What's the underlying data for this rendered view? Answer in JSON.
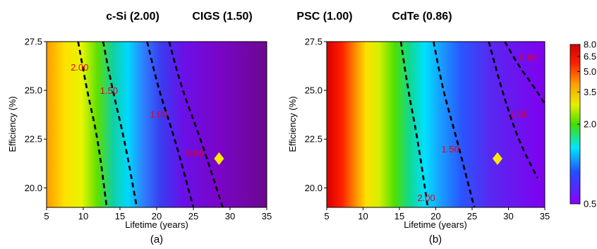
{
  "header_labels": [
    "c-Si (2.00)",
    "CIGS (1.50)",
    "PSC (1.00)",
    "CdTe (0.86)"
  ],
  "chart_data": [
    {
      "type": "heatmap",
      "panel_label": "(a)",
      "xlabel": "Lifetime (years)",
      "ylabel": "Efficiency (%)",
      "xlim": [
        5,
        35
      ],
      "ylim": [
        19,
        27.5
      ],
      "xticks": [
        "5",
        "10",
        "15",
        "20",
        "25",
        "30",
        "35"
      ],
      "yticks": [
        "20.0",
        "22.5",
        "25.0",
        "27.5"
      ],
      "contours": [
        {
          "level": "2.00",
          "points": [
            [
              9.3,
              27.5
            ],
            [
              10.5,
              25.0
            ],
            [
              12.0,
              22.5
            ],
            [
              13.2,
              19.0
            ]
          ]
        },
        {
          "level": "1.50",
          "points": [
            [
              12.7,
              27.5
            ],
            [
              14.0,
              25.0
            ],
            [
              15.6,
              22.5
            ],
            [
              17.3,
              19.0
            ]
          ]
        },
        {
          "level": "1.00",
          "points": [
            [
              18.7,
              27.5
            ],
            [
              20.3,
              25.0
            ],
            [
              22.5,
              22.5
            ],
            [
              25.0,
              19.0
            ]
          ]
        },
        {
          "level": "0.86",
          "points": [
            [
              21.7,
              27.5
            ],
            [
              23.5,
              25.0
            ],
            [
              26.0,
              22.5
            ],
            [
              29.0,
              19.0
            ]
          ]
        }
      ],
      "contour_labels": [
        {
          "text": "2.00",
          "x": 9.5,
          "y": 26.2
        },
        {
          "text": "1.50",
          "x": 13.5,
          "y": 25.0
        },
        {
          "text": "1.00",
          "x": 20.3,
          "y": 23.8
        },
        {
          "text": "0.86",
          "x": 25.2,
          "y": 21.8
        }
      ],
      "marker": {
        "x": 28.5,
        "y": 21.5,
        "shape": "diamond",
        "color": "#ffe800"
      }
    },
    {
      "type": "heatmap",
      "panel_label": "(b)",
      "xlabel": "Lifetime (years)",
      "ylabel": "Efficiency (%)",
      "xlim": [
        5,
        35
      ],
      "ylim": [
        19,
        27.5
      ],
      "xticks": [
        "5",
        "10",
        "15",
        "20",
        "25",
        "30",
        "35"
      ],
      "yticks": [
        "20.0",
        "22.5",
        "25.0",
        "27.5"
      ],
      "contours": [
        {
          "level": "2.00",
          "points": [
            [
              15.2,
              27.5
            ],
            [
              16.2,
              25.0
            ],
            [
              17.5,
              22.5
            ],
            [
              18.9,
              19.0
            ]
          ]
        },
        {
          "level": "1.50",
          "points": [
            [
              19.7,
              27.5
            ],
            [
              21.0,
              25.0
            ],
            [
              22.9,
              22.5
            ],
            [
              25.3,
              19.0
            ]
          ]
        },
        {
          "level": "1.00",
          "points": [
            [
              27.3,
              27.5
            ],
            [
              29.1,
              25.0
            ],
            [
              31.3,
              22.5
            ],
            [
              34.0,
              20.5
            ]
          ]
        },
        {
          "level": "0.86",
          "points": [
            [
              29.5,
              27.5
            ],
            [
              31.5,
              26.2
            ],
            [
              33.5,
              25.2
            ],
            [
              35.0,
              24.3
            ]
          ]
        }
      ],
      "contour_labels": [
        {
          "text": "2.00",
          "x": 18.7,
          "y": 19.5
        },
        {
          "text": "1.50",
          "x": 22.0,
          "y": 22.0
        },
        {
          "text": "1.00",
          "x": 31.5,
          "y": 23.8
        },
        {
          "text": "0.86",
          "x": 32.7,
          "y": 26.7
        }
      ],
      "marker": {
        "x": 28.5,
        "y": 21.5,
        "shape": "diamond",
        "color": "#ffe800"
      }
    }
  ],
  "colorbar": {
    "min": 0.5,
    "max": 8.0,
    "scale": "log",
    "ticks": [
      "8.0",
      "6.5",
      "5.0",
      "3.5",
      "2.0",
      "0.5"
    ]
  },
  "colors": {
    "contour": "#000000",
    "contour_label": "#e8001c",
    "marker": "#ffe800"
  }
}
